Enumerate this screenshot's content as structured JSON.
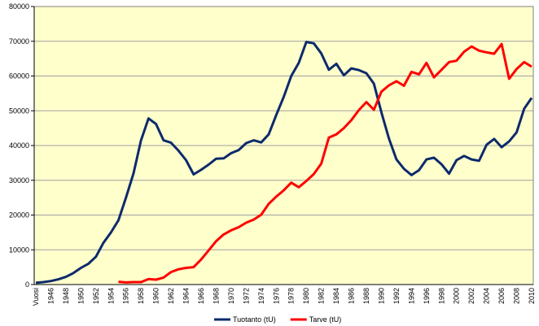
{
  "chart_data": {
    "type": "line",
    "categories": [
      "Vuosi",
      null,
      "1946",
      null,
      "1948",
      null,
      "1950",
      null,
      "1952",
      null,
      "1954",
      null,
      "1956",
      null,
      "1958",
      null,
      "1960",
      null,
      "1962",
      null,
      "1964",
      null,
      "1966",
      null,
      "1968",
      null,
      "1970",
      null,
      "1972",
      null,
      "1974",
      null,
      "1976",
      null,
      "1978",
      null,
      "1980",
      null,
      "1982",
      null,
      "1984",
      null,
      "1986",
      null,
      "1988",
      null,
      "1990",
      null,
      "1992",
      null,
      "1994",
      null,
      "1996",
      null,
      "1998",
      null,
      "2000",
      null,
      "2002",
      null,
      "2004",
      null,
      "2006",
      null,
      "2008",
      null,
      "2010"
    ],
    "series": [
      {
        "name": "Tuotanto (tU)",
        "color": "#0d2a6b",
        "values": [
          500,
          700,
          1000,
          1500,
          2200,
          3300,
          4800,
          6000,
          8000,
          12000,
          15000,
          18500,
          25000,
          32000,
          41500,
          47800,
          46200,
          41500,
          40800,
          38500,
          35800,
          31700,
          33000,
          34500,
          36200,
          36300,
          37800,
          38700,
          40700,
          41500,
          40900,
          43200,
          48800,
          54000,
          60000,
          63800,
          69800,
          69400,
          66500,
          61800,
          63500,
          60200,
          62200,
          61700,
          60800,
          57800,
          49500,
          42000,
          36000,
          33300,
          31500,
          32900,
          36000,
          36500,
          34600,
          31900,
          35800,
          37000,
          36000,
          35600,
          40200,
          41900,
          39500,
          41200,
          43800,
          50600,
          53700
        ]
      },
      {
        "name": "Tarve (tU)",
        "color": "#ff0000",
        "values": [
          null,
          null,
          null,
          null,
          null,
          null,
          null,
          null,
          null,
          null,
          null,
          800,
          600,
          700,
          700,
          1600,
          1400,
          2000,
          3600,
          4400,
          4800,
          5000,
          7200,
          9800,
          12500,
          14400,
          15600,
          16500,
          17800,
          18700,
          20100,
          23200,
          25300,
          27100,
          29300,
          28000,
          29800,
          31800,
          34800,
          42300,
          43200,
          45000,
          47300,
          50200,
          52500,
          50300,
          55500,
          57300,
          58500,
          57200,
          61200,
          60500,
          63800,
          59600,
          61800,
          64000,
          64400,
          67000,
          68500,
          67300,
          66800,
          66400,
          69200,
          59200,
          62000,
          64000,
          62700
        ]
      }
    ],
    "ylim": [
      0,
      80000
    ],
    "yticks": [
      0,
      10000,
      20000,
      30000,
      40000,
      50000,
      60000,
      70000,
      80000
    ],
    "grid": true,
    "background": "#ffffcc",
    "legend": "bottom"
  }
}
